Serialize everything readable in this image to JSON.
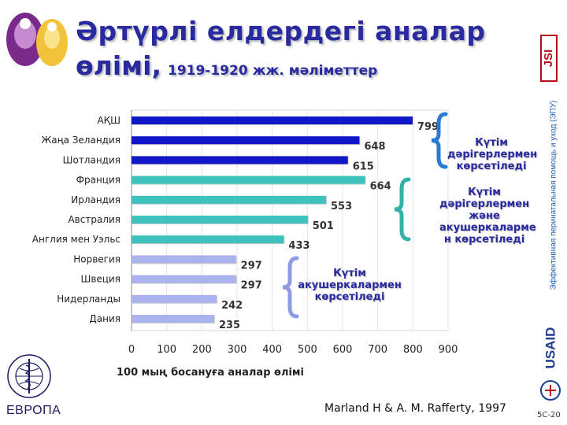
{
  "title": {
    "line1": "Әртүрлі елдердегі аналар",
    "line2_main": "өлімі,",
    "line2_sub": "1919-1920 жж. мәліметтер"
  },
  "chart_data": {
    "type": "bar",
    "orientation": "horizontal",
    "categories": [
      "АҚШ",
      "Жаңа Зеландия",
      "Шотландия",
      "Франция",
      "Ирландия",
      "Австралия",
      "Англия мен Уэльс",
      "Норвегия",
      "Швеция",
      "Нидерланды",
      "Дания"
    ],
    "values": [
      799,
      648,
      615,
      664,
      553,
      501,
      433,
      297,
      297,
      242,
      235
    ],
    "value_labels": [
      "799",
      "648",
      "615",
      "664",
      "553",
      "501",
      "433",
      "297",
      "297",
      "242",
      "235"
    ],
    "groups": [
      0,
      0,
      0,
      1,
      1,
      1,
      1,
      2,
      2,
      2,
      2
    ],
    "group_colors": [
      "#0f17c8",
      "#3ec2bd",
      "#aab3ee"
    ],
    "xlabel": "100 мың босануға аналар өлімі",
    "xlim": [
      0,
      900
    ],
    "xticks": [
      "0",
      "100",
      "200",
      "300",
      "400",
      "500",
      "600",
      "700",
      "800",
      "900"
    ],
    "annotations": [
      {
        "text_lines": [
          "Күтім",
          "дәрігерлермен",
          "көрсетіледі"
        ],
        "color": "#2a7ad2"
      },
      {
        "text_lines": [
          "Күтім",
          "дәрігерлермен",
          "және",
          "акушеркаларме",
          "н көрсетіледі"
        ],
        "color": "#2fb3a8"
      },
      {
        "text_lines": [
          "Күтім",
          "акушеркалармен",
          "көрсетіледі"
        ],
        "color": "#8f9be6"
      }
    ]
  },
  "source": "Marland H & A. M. Rafferty, 1997",
  "page_number": "5C-20",
  "side_text": "Эффективная перинатальная помощь и уход (ЭПУ)",
  "logos": {
    "who_label": "ЕВРОПА",
    "jsi": "JSI",
    "usaid": "USAID"
  }
}
